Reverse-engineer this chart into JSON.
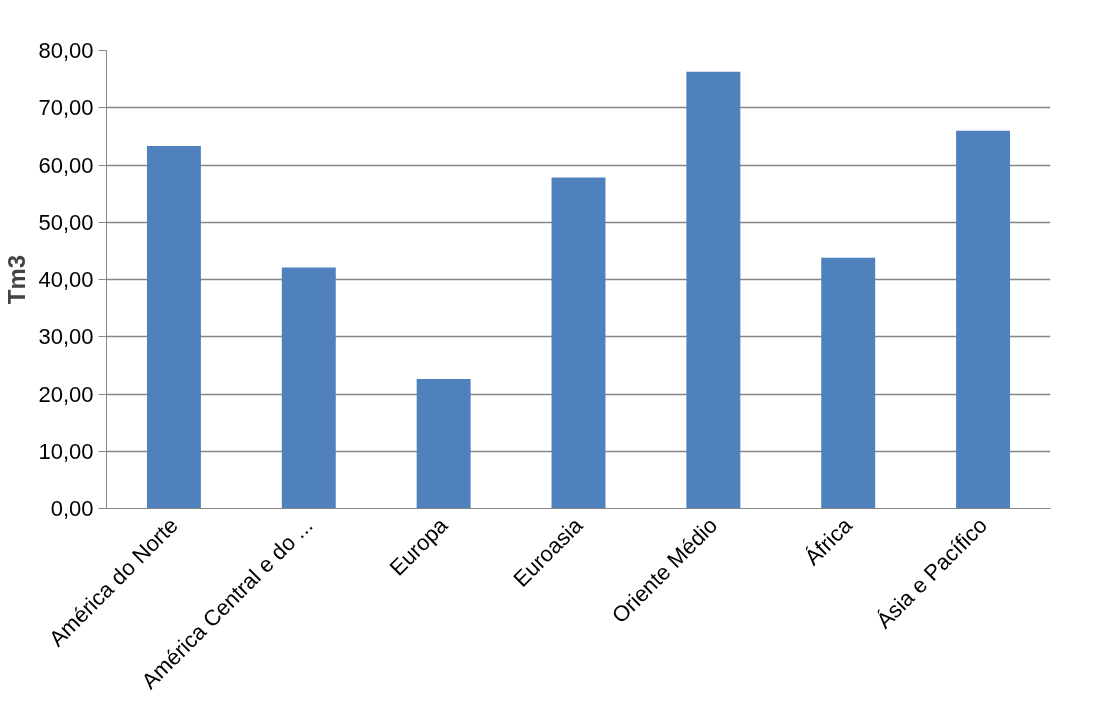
{
  "chart_data": {
    "type": "bar",
    "ylabel": "Tm3",
    "categories": [
      "América do Norte",
      "América Central e do ...",
      "Europa",
      "Euroasia",
      "Oriente Médio",
      "África",
      "Ásia e Pacífico"
    ],
    "values": [
      63.3,
      42.1,
      22.6,
      57.8,
      76.3,
      43.8,
      66.0
    ],
    "color": "#4f81bd",
    "ylim": [
      0,
      80
    ],
    "yticks": [
      {
        "value": 0,
        "label": "0,00"
      },
      {
        "value": 10,
        "label": "10,00"
      },
      {
        "value": 20,
        "label": "20,00"
      },
      {
        "value": 30,
        "label": "30,00"
      },
      {
        "value": 40,
        "label": "40,00"
      },
      {
        "value": 50,
        "label": "50,00"
      },
      {
        "value": 60,
        "label": "60,00"
      },
      {
        "value": 70,
        "label": "70,00"
      },
      {
        "value": 80,
        "label": "80,00"
      }
    ],
    "grid": "y"
  }
}
